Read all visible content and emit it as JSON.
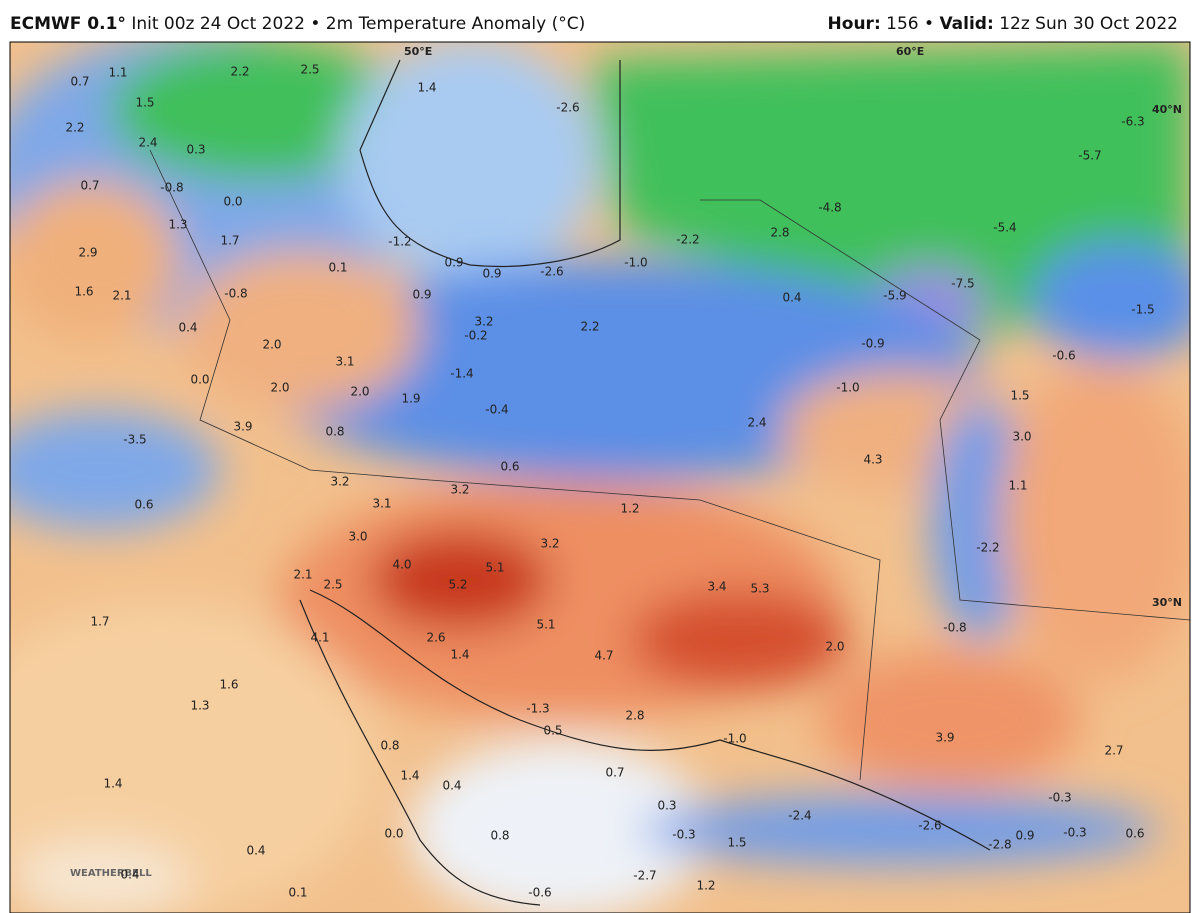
{
  "header": {
    "left_title": "ECMWF 0.1°",
    "left_subtitle": "Init 00z 24 Oct 2022 • 2m Temperature Anomaly (°C)",
    "right_items": [
      "Hour:",
      "156 •",
      "Valid:",
      "12z Sun 30 Oct 2022"
    ]
  },
  "grid_labels": [
    "50°E",
    "60°E",
    "40°N",
    "30°N"
  ],
  "logo": "WEATHERBELL",
  "values": [
    "0.7",
    "1.1",
    "2.2",
    "2.5",
    "1.4",
    "1.5",
    "2.2",
    "2.4",
    "0.3",
    "0.7",
    "-0.8",
    "0.0",
    "1.3",
    "1.7",
    "-1.2",
    "-2.6",
    "-6.3",
    "-5.7",
    "-4.8",
    "-5.4",
    "-2.2",
    "2.8",
    "-1.0",
    "-2.6",
    "0.9",
    "0.9",
    "0.1",
    "2.9",
    "1.6",
    "2.1",
    "-0.8",
    "0.9",
    "0.4",
    "-5.9",
    "-7.5",
    "-1.5",
    "0.4",
    "3.2",
    "-0.2",
    "2.2",
    "-0.9",
    "-0.6",
    "2.0",
    "3.1",
    "-1.4",
    "0.0",
    "2.0",
    "2.0",
    "1.9",
    "-0.4",
    "-1.0",
    "1.5",
    "3.9",
    "0.8",
    "2.4",
    "3.0",
    "-3.5",
    "0.6",
    "4.3",
    "3.2",
    "3.1",
    "3.2",
    "1.1",
    "0.6",
    "1.2",
    "3.0",
    "3.2",
    "-2.2",
    "4.0",
    "5.1",
    "2.1",
    "2.5",
    "5.2",
    "3.4",
    "5.3",
    "1.7",
    "-0.8",
    "5.1",
    "4.1",
    "2.6",
    "2.0",
    "1.4",
    "4.7",
    "1.6",
    "1.3",
    "-1.3",
    "2.8",
    "0.5",
    "-1.0",
    "3.9",
    "2.7",
    "0.8",
    "1.4",
    "0.7",
    "1.4",
    "0.4",
    "-0.3",
    "0.3",
    "-2.4",
    "-2.6",
    "0.0",
    "0.8",
    "-0.3",
    "0.9",
    "-0.3",
    "0.6",
    "-2.8",
    "1.5",
    "0.4",
    "0.4",
    "-2.7",
    "1.2",
    "0.1",
    "-0.6"
  ]
}
